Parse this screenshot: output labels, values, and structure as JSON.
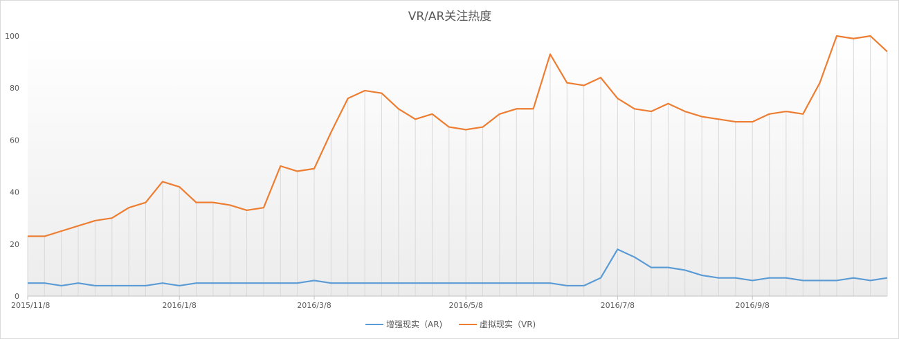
{
  "chart_data": {
    "type": "line",
    "title": "VR/AR关注热度",
    "ylim": [
      0,
      100
    ],
    "yticks": [
      0,
      20,
      40,
      60,
      80,
      100
    ],
    "x_tick_labels": [
      "2015/11/8",
      "2016/1/8",
      "2016/3/8",
      "2016/5/8",
      "2016/7/8",
      "2016/9/8"
    ],
    "x_tick_indices": [
      0,
      9,
      17,
      26,
      35,
      43
    ],
    "grid": "vertical lines per data point",
    "legend_position": "bottom",
    "series": [
      {
        "name": "增强现实（AR)",
        "color": "#5b9bd5",
        "values": [
          5,
          5,
          4,
          5,
          4,
          4,
          4,
          4,
          5,
          4,
          5,
          5,
          5,
          5,
          5,
          5,
          5,
          6,
          5,
          5,
          5,
          5,
          5,
          5,
          5,
          5,
          5,
          5,
          5,
          5,
          5,
          5,
          4,
          4,
          7,
          18,
          15,
          11,
          11,
          10,
          8,
          7,
          7,
          6,
          7,
          7,
          6,
          6,
          6,
          7,
          6,
          7
        ]
      },
      {
        "name": "虚拟现实（VR)",
        "color": "#ed7d31",
        "values": [
          23,
          23,
          25,
          27,
          29,
          30,
          34,
          36,
          44,
          42,
          36,
          36,
          35,
          33,
          34,
          50,
          48,
          49,
          63,
          76,
          79,
          78,
          72,
          68,
          70,
          65,
          64,
          65,
          70,
          72,
          72,
          93,
          82,
          81,
          84,
          76,
          72,
          71,
          74,
          71,
          69,
          68,
          67,
          67,
          70,
          71,
          70,
          82,
          100,
          99,
          100,
          94
        ]
      }
    ]
  }
}
